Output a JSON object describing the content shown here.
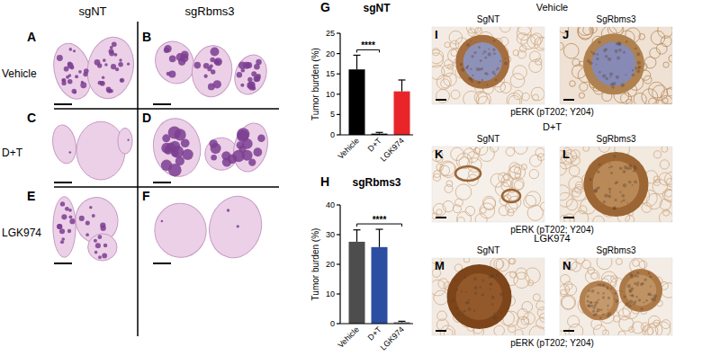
{
  "lung_panels": {
    "column_labels": [
      "sgNT",
      "sgRbms3"
    ],
    "row_labels": [
      "Vehicle",
      "D+T",
      "LGK974"
    ],
    "panels": [
      "A",
      "B",
      "C",
      "D",
      "E",
      "F"
    ]
  },
  "chart_data": [
    {
      "type": "bar",
      "panel": "G",
      "title": "sgNT",
      "ylabel": "Tumor burden (%)",
      "categories": [
        "Vehicle",
        "D+T",
        "LGK974"
      ],
      "values": [
        16.1,
        0.3,
        10.7
      ],
      "errors": [
        3.5,
        0.3,
        2.8
      ],
      "colors": [
        "#000000",
        "#000000",
        "#e8262a"
      ],
      "ylim": [
        0,
        25
      ],
      "yticks": [
        0,
        5,
        10,
        15,
        20,
        25
      ],
      "annotations": [
        {
          "text": "****",
          "from": 0,
          "to": 1
        }
      ]
    },
    {
      "type": "bar",
      "panel": "H",
      "title": "sgRbms3",
      "ylabel": "Tumor burden (%)",
      "categories": [
        "Vehicle",
        "D+T",
        "LGK974"
      ],
      "values": [
        27.6,
        25.8,
        0.5
      ],
      "errors": [
        4.0,
        6.0,
        0.3
      ],
      "colors": [
        "#4d4d4d",
        "#2b4ea2",
        "#808080"
      ],
      "ylim": [
        0,
        40
      ],
      "yticks": [
        0,
        10,
        20,
        30,
        40
      ],
      "annotations": [
        {
          "text": "****",
          "from": 0,
          "to": 2
        }
      ]
    }
  ],
  "ihc_panels": {
    "groups": [
      {
        "title": "Vehicle",
        "columns": [
          "SgNT",
          "SgRbms3"
        ],
        "panels": [
          "I",
          "J"
        ],
        "caption": "pERK (pT202; Y204)"
      },
      {
        "title": "D+T",
        "columns": [
          "SgNT",
          "SgRbms3"
        ],
        "panels": [
          "K",
          "L"
        ],
        "caption": "pERK (pT202; Y204)"
      },
      {
        "title": "LGK974",
        "columns": [
          "SgNT",
          "SgRbms3"
        ],
        "panels": [
          "M",
          "N"
        ],
        "caption": "pERK (pT202; Y204)"
      }
    ]
  }
}
